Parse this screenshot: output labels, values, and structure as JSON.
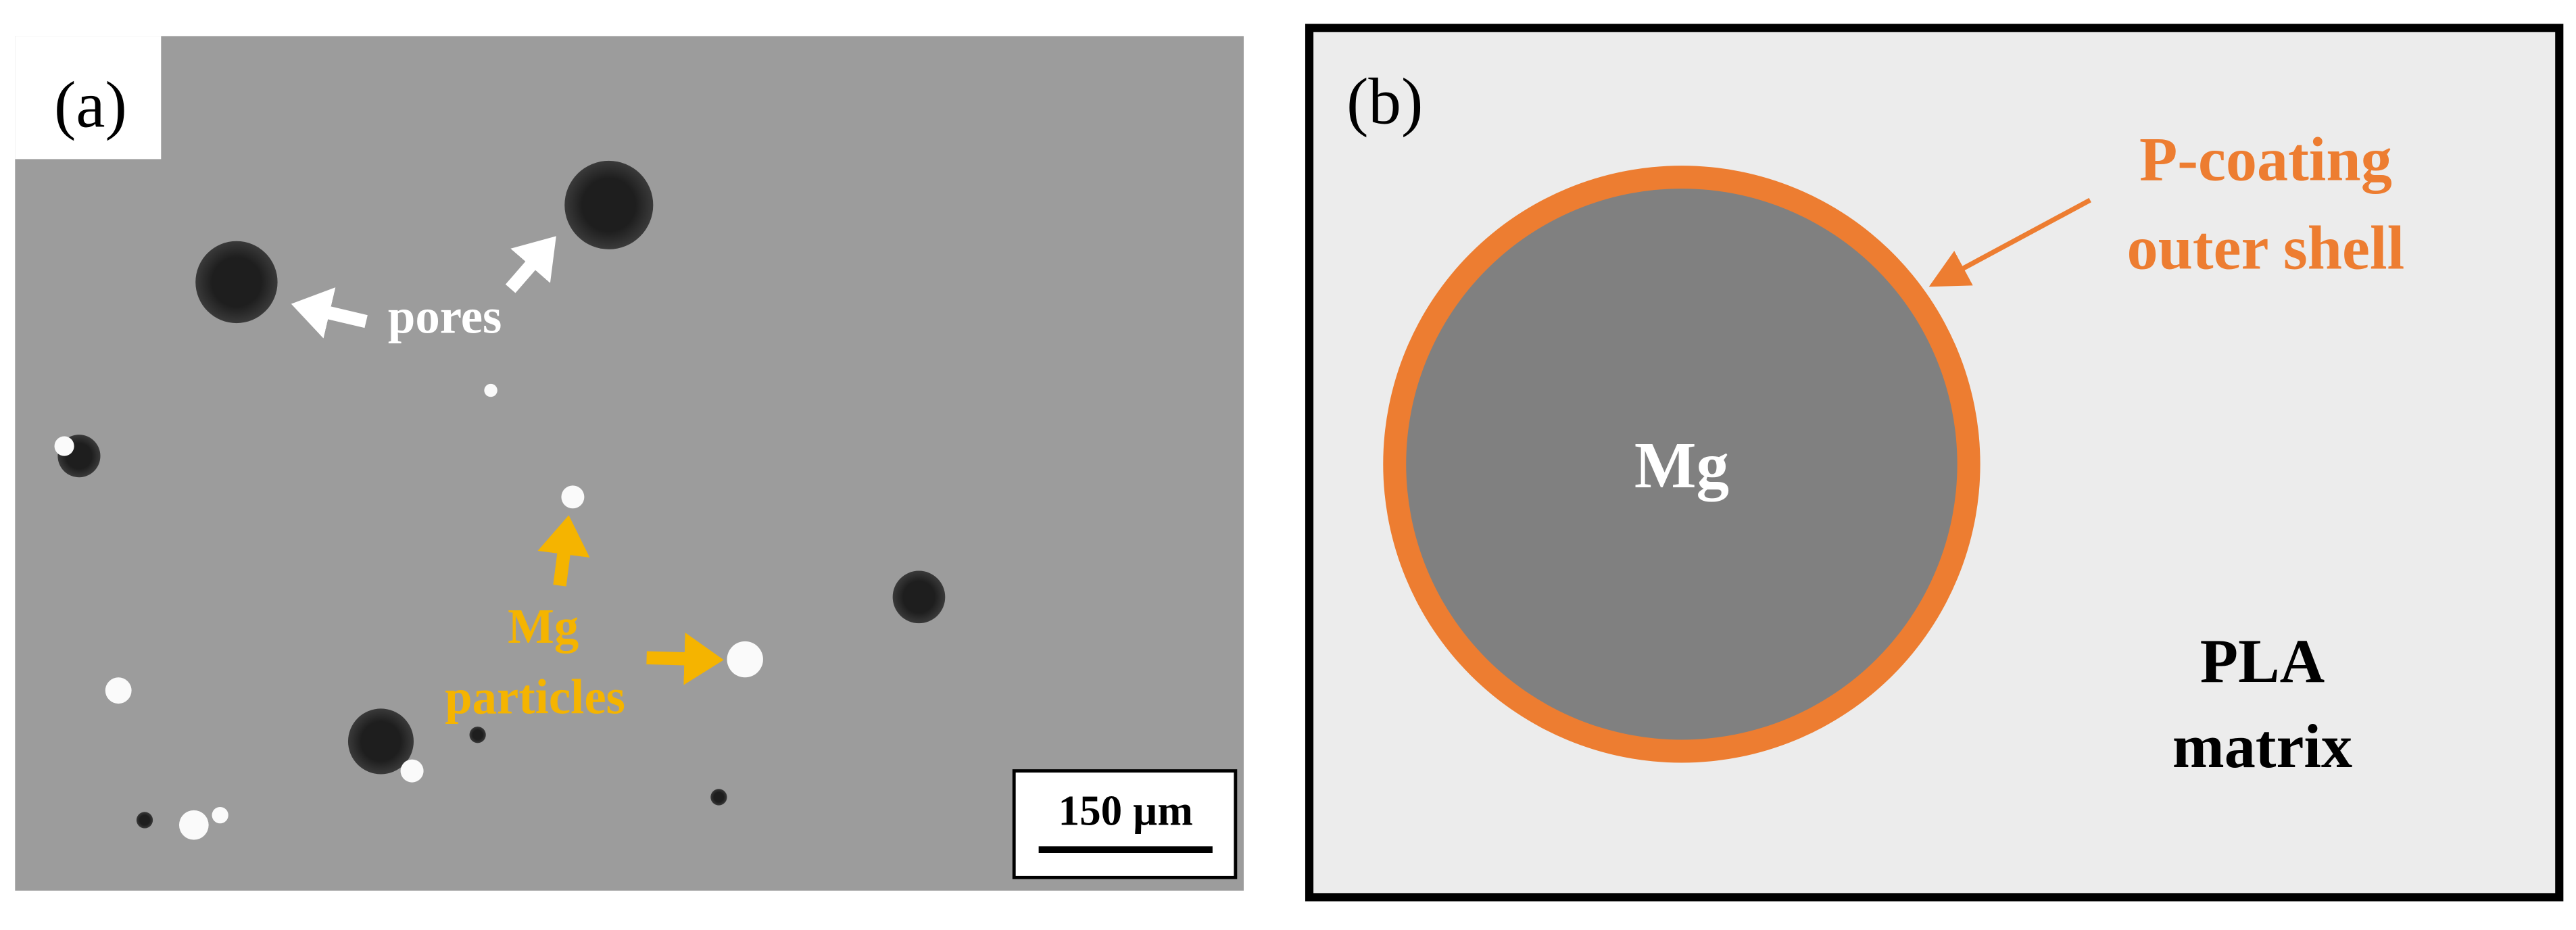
{
  "panel_a": {
    "label": "(a)",
    "pores_label": "pores",
    "particles_label": [
      "Mg",
      "particles"
    ],
    "scale_bar": "150 µm"
  },
  "panel_b": {
    "label": "(b)",
    "shell_label": [
      "P-coating",
      "outer shell"
    ],
    "core_label": "Mg",
    "matrix_label": [
      "PLA",
      "matrix"
    ]
  }
}
